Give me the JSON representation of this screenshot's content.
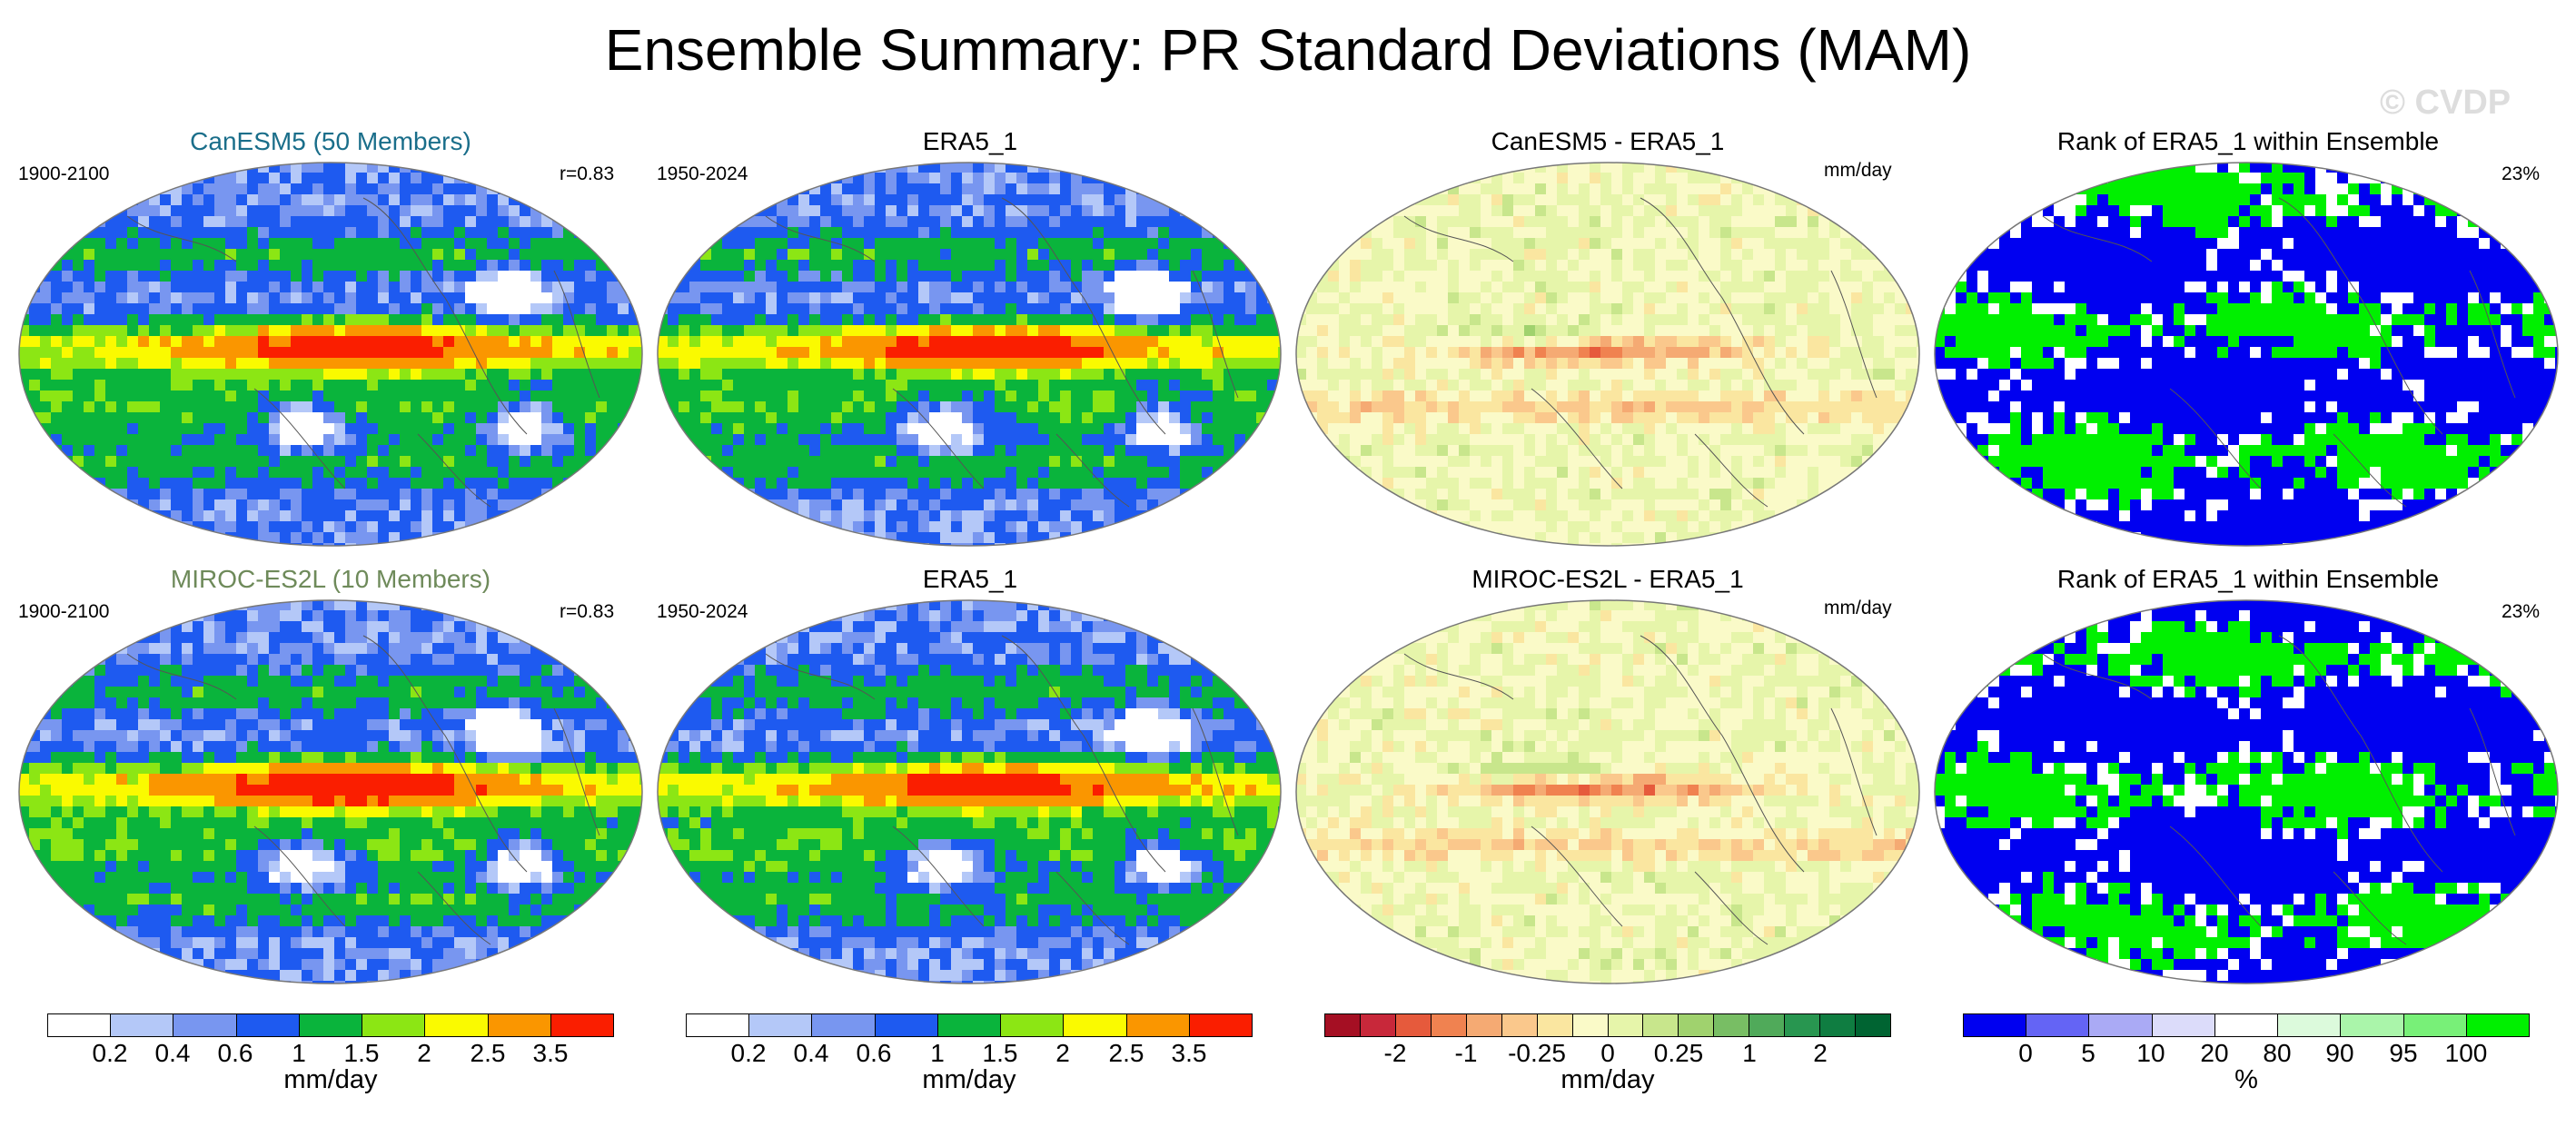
{
  "title": "Ensemble Summary: PR Standard Deviations (MAM)",
  "watermark": "© CVDP",
  "rows": [
    {
      "model": {
        "title": "CanESM5 (50 Members)",
        "title_color": "#1a6e8a",
        "period": "1900-2100",
        "corr": "r=0.83"
      },
      "obs": {
        "title": "ERA5_1",
        "period": "1950-2024"
      },
      "diff": {
        "title": "CanESM5 - ERA5_1",
        "units": "mm/day"
      },
      "rank": {
        "title": "Rank of ERA5_1 within Ensemble",
        "pct": "23%"
      }
    },
    {
      "model": {
        "title": "MIROC-ES2L (10 Members)",
        "title_color": "#6e8a5a",
        "period": "1900-2100",
        "corr": "r=0.83"
      },
      "obs": {
        "title": "ERA5_1",
        "period": "1950-2024"
      },
      "diff": {
        "title": "MIROC-ES2L - ERA5_1",
        "units": "mm/day"
      },
      "rank": {
        "title": "Rank of ERA5_1 within Ensemble",
        "pct": "23%"
      }
    }
  ],
  "colorbars": {
    "pr": {
      "colors": [
        "#ffffff",
        "#b4c8f8",
        "#7896f0",
        "#1e5af0",
        "#0ab43c",
        "#8ce614",
        "#fafa00",
        "#fa9600",
        "#fa1e00"
      ],
      "ticks": [
        "0.2",
        "0.4",
        "0.6",
        "1",
        "1.5",
        "2",
        "2.5",
        "3.5"
      ],
      "units": "mm/day"
    },
    "diff": {
      "colors": [
        "#a50f23",
        "#c8283a",
        "#e65a3c",
        "#f08250",
        "#f5aa73",
        "#fac88c",
        "#fae6a0",
        "#fafac8",
        "#e6f5aa",
        "#c8e68c",
        "#a0d26e",
        "#78be64",
        "#50aa5a",
        "#289650",
        "#0f7d41",
        "#006432"
      ],
      "ticks": [
        "-2",
        "-1",
        "-0.25",
        "0",
        "0.25",
        "1",
        "2"
      ],
      "units": "mm/day"
    },
    "rank": {
      "colors": [
        "#0000f0",
        "#6464f5",
        "#aaaaf5",
        "#dcdcfa",
        "#ffffff",
        "#dcfadc",
        "#aaf5aa",
        "#78f078",
        "#00f000"
      ],
      "ticks": [
        "0",
        "5",
        "10",
        "20",
        "80",
        "90",
        "95",
        "100"
      ],
      "units": "%"
    }
  }
}
